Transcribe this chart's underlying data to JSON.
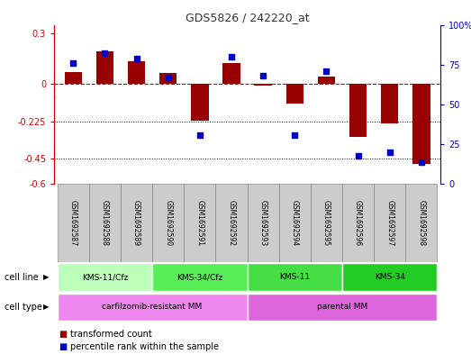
{
  "title": "GDS5826 / 242220_at",
  "samples": [
    "GSM1692587",
    "GSM1692588",
    "GSM1692589",
    "GSM1692590",
    "GSM1692591",
    "GSM1692592",
    "GSM1692593",
    "GSM1692594",
    "GSM1692595",
    "GSM1692596",
    "GSM1692597",
    "GSM1692598"
  ],
  "transformed_count": [
    0.07,
    0.19,
    0.13,
    0.06,
    -0.22,
    0.12,
    -0.01,
    -0.12,
    0.04,
    -0.32,
    -0.24,
    -0.48
  ],
  "percentile_rank": [
    76,
    82,
    79,
    67,
    31,
    80,
    68,
    31,
    71,
    18,
    20,
    14
  ],
  "ylim_left": [
    -0.6,
    0.35
  ],
  "ylim_right": [
    0,
    100
  ],
  "yticks_left": [
    -0.6,
    -0.45,
    -0.225,
    0.0,
    0.3
  ],
  "ytick_labels_left": [
    "-0.6",
    "-0.45",
    "-0.225",
    "0",
    "0.3"
  ],
  "yticks_right": [
    0,
    25,
    50,
    75,
    100
  ],
  "ytick_labels_right": [
    "0",
    "25",
    "50",
    "75",
    "100%"
  ],
  "hline_y": 0.0,
  "dotted_lines": [
    -0.225,
    -0.45
  ],
  "bar_color": "#990000",
  "dot_color": "#0000cc",
  "cell_line_groups": [
    {
      "label": "KMS-11/Cfz",
      "start": 0,
      "end": 3,
      "color": "#bbffbb"
    },
    {
      "label": "KMS-34/Cfz",
      "start": 3,
      "end": 6,
      "color": "#55ee55"
    },
    {
      "label": "KMS-11",
      "start": 6,
      "end": 9,
      "color": "#44dd44"
    },
    {
      "label": "KMS-34",
      "start": 9,
      "end": 12,
      "color": "#22cc22"
    }
  ],
  "cell_type_groups": [
    {
      "label": "carfilzomib-resistant MM",
      "start": 0,
      "end": 6,
      "color": "#ee88ee"
    },
    {
      "label": "parental MM",
      "start": 6,
      "end": 12,
      "color": "#dd66dd"
    }
  ],
  "legend_bar_label": "transformed count",
  "legend_dot_label": "percentile rank within the sample",
  "bar_width": 0.55,
  "dot_size": 18,
  "background_color": "#ffffff",
  "plot_bg_color": "#ffffff",
  "title_color": "#333333",
  "left_axis_color": "#cc0000",
  "right_axis_color": "#0000cc",
  "sample_bg_color": "#cccccc",
  "sample_border_color": "#888888"
}
